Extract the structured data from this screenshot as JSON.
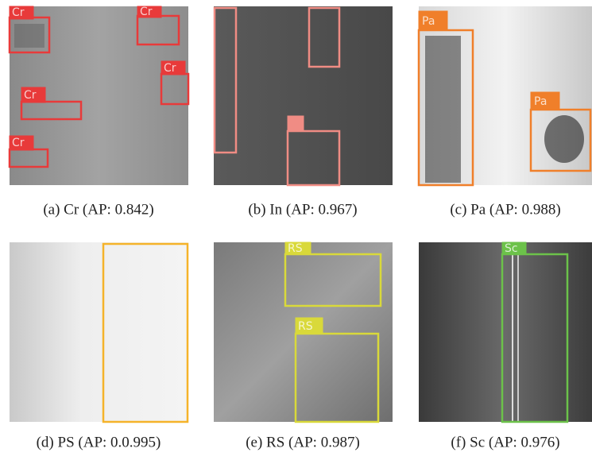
{
  "panels": [
    {
      "caption": "(a) Cr (AP: 0.842)",
      "box_labels": [
        "Cr",
        "Cr",
        "Cr",
        "Cr",
        "Cr"
      ]
    },
    {
      "caption": "(b) In (AP: 0.967)"
    },
    {
      "caption": "(c) Pa (AP: 0.988)",
      "box_labels": [
        "Pa",
        "Pa"
      ]
    },
    {
      "caption": "(d) PS (AP: 0.0.995)"
    },
    {
      "caption": "(e) RS (AP: 0.987)",
      "box_labels": [
        "RS",
        "RS"
      ]
    },
    {
      "caption": "(f) Sc (AP: 0.976)",
      "box_labels": [
        "Sc"
      ]
    }
  ]
}
